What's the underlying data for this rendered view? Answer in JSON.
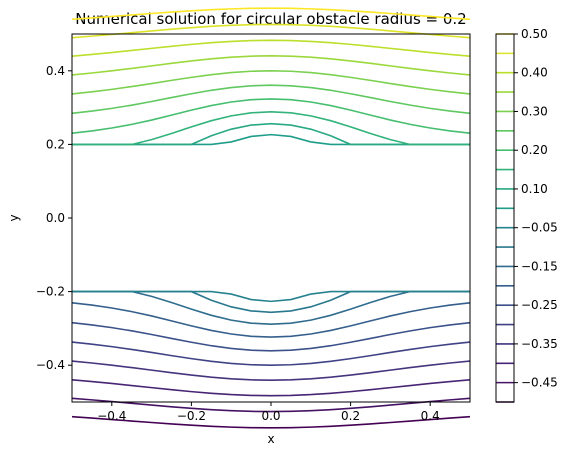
{
  "chart_data": {
    "type": "contour",
    "title": "Numerical solution for circular obstacle radius = 0.2",
    "xlabel": "x",
    "ylabel": "y",
    "xlim": [
      -0.5,
      0.5
    ],
    "ylim": [
      -0.5,
      0.5
    ],
    "x_ticks": [
      -0.4,
      -0.2,
      0.0,
      0.2,
      0.4
    ],
    "x_tick_labels": [
      "−0.4",
      "−0.2",
      "0.0",
      "0.2",
      "0.4"
    ],
    "y_ticks": [
      -0.4,
      -0.2,
      0.0,
      0.2,
      0.4
    ],
    "y_tick_labels": [
      "−0.4",
      "−0.2",
      "0.0",
      "0.2",
      "0.4"
    ],
    "obstacle": {
      "center": [
        0.0,
        0.0
      ],
      "radius": 0.2
    },
    "colormap": "viridis",
    "levels": [
      -0.5,
      -0.45,
      -0.4,
      -0.35,
      -0.3,
      -0.25,
      -0.2,
      -0.15,
      -0.1,
      -0.05,
      0.05,
      0.1,
      0.15,
      0.2,
      0.25,
      0.3,
      0.35,
      0.4,
      0.45,
      0.5
    ],
    "colorbar": {
      "tick_values": [
        0.5,
        0.4,
        0.3,
        0.2,
        0.1,
        -0.05,
        -0.15,
        -0.25,
        -0.35,
        -0.45
      ],
      "tick_labels": [
        "0.50",
        "0.40",
        "0.30",
        "0.20",
        "0.10",
        "−0.05",
        "−0.15",
        "−0.25",
        "−0.35",
        "−0.45"
      ]
    },
    "grid": false
  }
}
